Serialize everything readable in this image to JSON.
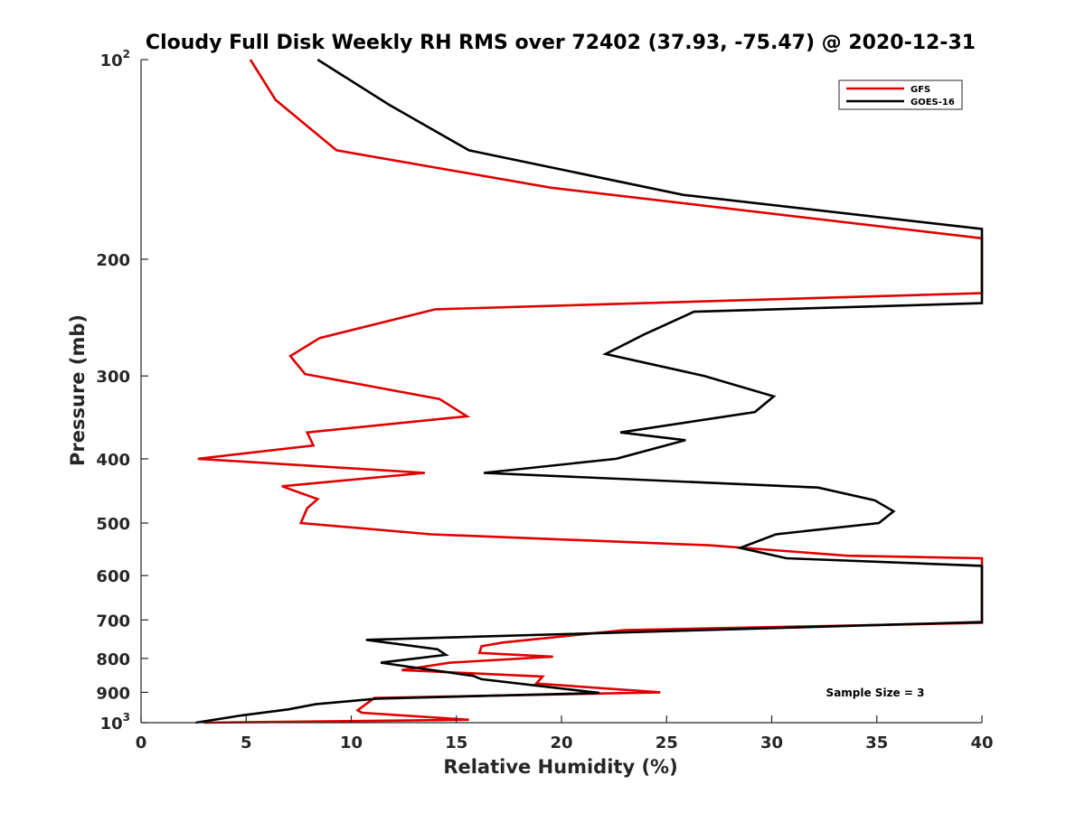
{
  "chart_data": {
    "type": "line",
    "title": "Cloudy Full Disk Weekly RH RMS over 72402 (37.93, -75.47) @ 2020-12-31",
    "xlabel": "Relative Humidity (%)",
    "ylabel": "Pressure (mb)",
    "xlim": [
      0,
      40
    ],
    "ylim": [
      100,
      1000
    ],
    "y_scale": "log",
    "y_reversed": true,
    "x_ticks": [
      "0",
      "5",
      "10",
      "15",
      "20",
      "25",
      "30",
      "35",
      "40"
    ],
    "y_ticks": [
      {
        "value": 100,
        "base": "10",
        "exp": "2"
      },
      {
        "value": 200,
        "label": "200"
      },
      {
        "value": 300,
        "label": "300"
      },
      {
        "value": 400,
        "label": "400"
      },
      {
        "value": 500,
        "label": "500"
      },
      {
        "value": 600,
        "label": "600"
      },
      {
        "value": 700,
        "label": "700"
      },
      {
        "value": 800,
        "label": "800"
      },
      {
        "value": 900,
        "label": "900"
      },
      {
        "value": 1000,
        "base": "10",
        "exp": "3"
      }
    ],
    "grid": false,
    "legend_position": "top-right",
    "annotation": "Sample Size = 3",
    "series": [
      {
        "name": "GFS",
        "color": "#e00000",
        "points": [
          [
            5.2,
            100
          ],
          [
            6.4,
            115
          ],
          [
            9.3,
            137
          ],
          [
            19.5,
            156
          ],
          [
            40.0,
            186
          ],
          [
            40.0,
            225
          ],
          [
            14.0,
            238
          ],
          [
            8.5,
            263
          ],
          [
            7.1,
            280
          ],
          [
            7.8,
            298
          ],
          [
            14.2,
            325
          ],
          [
            15.5,
            345
          ],
          [
            7.9,
            365
          ],
          [
            8.2,
            382
          ],
          [
            2.7,
            400
          ],
          [
            13.5,
            420
          ],
          [
            6.7,
            440
          ],
          [
            8.4,
            460
          ],
          [
            7.9,
            475
          ],
          [
            7.6,
            500
          ],
          [
            13.8,
            520
          ],
          [
            27.0,
            540
          ],
          [
            33.6,
            560
          ],
          [
            40.0,
            565
          ],
          [
            40.0,
            707
          ],
          [
            23.0,
            725
          ],
          [
            17.2,
            757
          ],
          [
            16.2,
            767
          ],
          [
            16.1,
            785
          ],
          [
            19.6,
            795
          ],
          [
            14.7,
            812
          ],
          [
            12.4,
            833
          ],
          [
            19.1,
            852
          ],
          [
            18.8,
            873
          ],
          [
            24.7,
            900
          ],
          [
            11.1,
            918
          ],
          [
            10.3,
            958
          ],
          [
            10.5,
            966
          ],
          [
            15.6,
            990
          ],
          [
            3.0,
            1000
          ]
        ]
      },
      {
        "name": "GOES-16",
        "color": "#000000",
        "points": [
          [
            8.4,
            100
          ],
          [
            11.8,
            117
          ],
          [
            15.6,
            137
          ],
          [
            25.8,
            160
          ],
          [
            40.0,
            180
          ],
          [
            40.0,
            233
          ],
          [
            26.3,
            240
          ],
          [
            23.9,
            260
          ],
          [
            22.1,
            278
          ],
          [
            26.8,
            300
          ],
          [
            30.1,
            322
          ],
          [
            29.2,
            340
          ],
          [
            22.8,
            365
          ],
          [
            25.9,
            375
          ],
          [
            22.6,
            400
          ],
          [
            16.3,
            420
          ],
          [
            32.2,
            442
          ],
          [
            34.9,
            462
          ],
          [
            35.8,
            480
          ],
          [
            35.1,
            500
          ],
          [
            30.2,
            520
          ],
          [
            28.5,
            545
          ],
          [
            30.7,
            565
          ],
          [
            40.0,
            580
          ],
          [
            40.0,
            705
          ],
          [
            10.7,
            750
          ],
          [
            14.1,
            775
          ],
          [
            14.5,
            790
          ],
          [
            11.4,
            812
          ],
          [
            15.8,
            850
          ],
          [
            16.2,
            860
          ],
          [
            21.8,
            902
          ],
          [
            11.2,
            920
          ],
          [
            8.3,
            938
          ],
          [
            7.0,
            955
          ],
          [
            4.8,
            975
          ],
          [
            2.6,
            1000
          ]
        ]
      }
    ]
  }
}
